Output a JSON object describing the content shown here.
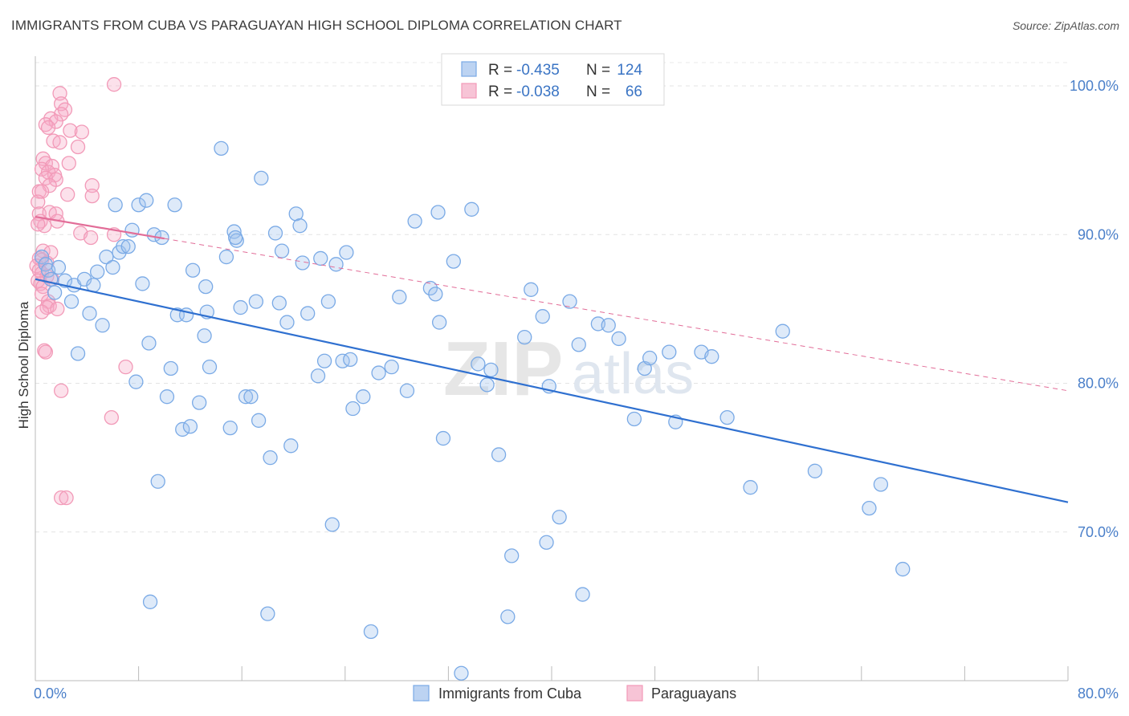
{
  "title": "IMMIGRANTS FROM CUBA VS PARAGUAYAN HIGH SCHOOL DIPLOMA CORRELATION CHART",
  "source": "Source: ZipAtlas.com",
  "watermark": {
    "part1": "ZIP",
    "part2": "atlas"
  },
  "colors": {
    "blue": "#7aaae6",
    "blue_line": "#2f70d0",
    "pink": "#f29ab8",
    "pink_line": "#e26d98"
  },
  "legend": {
    "r_label": "R =",
    "n_label": "N =",
    "rows": [
      {
        "r": "-0.435",
        "n": "124"
      },
      {
        "r": "-0.038",
        "n": "66"
      }
    ]
  },
  "chart_data": {
    "type": "scatter",
    "ylabel": "High School Diploma",
    "xlim": [
      0,
      80
    ],
    "ylim": [
      60,
      102
    ],
    "x_tick_labels": [
      "0.0%",
      "80.0%"
    ],
    "y_ticks": [
      100,
      90,
      80,
      70
    ],
    "y_tick_labels": [
      "100.0%",
      "90.0%",
      "80.0%",
      "70.0%"
    ],
    "series": [
      {
        "name": "Immigrants from Cuba",
        "trend": {
          "x0": 0,
          "y0": 87.0,
          "x1": 80,
          "y1": 72.0,
          "style": "solid"
        },
        "points": [
          [
            0.5,
            88.5
          ],
          [
            0.8,
            88.0
          ],
          [
            1.0,
            87.6
          ],
          [
            1.2,
            87.0
          ],
          [
            1.5,
            86.1
          ],
          [
            1.8,
            87.8
          ],
          [
            2.3,
            86.9
          ],
          [
            2.8,
            85.5
          ],
          [
            3.0,
            86.6
          ],
          [
            3.3,
            82.0
          ],
          [
            3.8,
            87.0
          ],
          [
            4.2,
            84.7
          ],
          [
            4.5,
            86.6
          ],
          [
            4.8,
            87.5
          ],
          [
            5.2,
            83.9
          ],
          [
            5.5,
            88.5
          ],
          [
            6.0,
            87.8
          ],
          [
            6.2,
            92.0
          ],
          [
            6.5,
            88.8
          ],
          [
            6.8,
            89.2
          ],
          [
            7.2,
            89.2
          ],
          [
            7.5,
            90.3
          ],
          [
            7.8,
            80.1
          ],
          [
            8.0,
            92.0
          ],
          [
            8.3,
            86.7
          ],
          [
            8.6,
            92.3
          ],
          [
            8.8,
            82.7
          ],
          [
            9.2,
            90.0
          ],
          [
            9.5,
            73.4
          ],
          [
            9.8,
            89.8
          ],
          [
            10.2,
            79.1
          ],
          [
            10.5,
            81.0
          ],
          [
            10.8,
            92.0
          ],
          [
            11.0,
            84.6
          ],
          [
            11.4,
            76.9
          ],
          [
            11.7,
            84.6
          ],
          [
            12.0,
            77.1
          ],
          [
            12.2,
            87.6
          ],
          [
            12.7,
            78.7
          ],
          [
            13.1,
            83.2
          ],
          [
            13.3,
            84.8
          ],
          [
            13.5,
            81.1
          ],
          [
            13.2,
            86.5
          ],
          [
            14.4,
            95.8
          ],
          [
            14.8,
            88.5
          ],
          [
            15.1,
            77.0
          ],
          [
            15.4,
            90.2
          ],
          [
            15.6,
            89.6
          ],
          [
            15.9,
            85.1
          ],
          [
            16.3,
            79.1
          ],
          [
            16.7,
            79.1
          ],
          [
            17.1,
            85.5
          ],
          [
            17.3,
            77.5
          ],
          [
            17.5,
            93.8
          ],
          [
            18.2,
            75.0
          ],
          [
            18.6,
            90.1
          ],
          [
            18.9,
            85.4
          ],
          [
            19.1,
            88.9
          ],
          [
            19.5,
            84.1
          ],
          [
            19.8,
            75.8
          ],
          [
            20.2,
            91.4
          ],
          [
            20.5,
            90.6
          ],
          [
            20.7,
            88.1
          ],
          [
            21.1,
            84.7
          ],
          [
            21.9,
            80.5
          ],
          [
            22.1,
            88.4
          ],
          [
            22.4,
            81.5
          ],
          [
            22.7,
            85.5
          ],
          [
            23.0,
            70.5
          ],
          [
            23.3,
            88.0
          ],
          [
            23.8,
            81.5
          ],
          [
            24.1,
            88.8
          ],
          [
            24.4,
            81.6
          ],
          [
            24.6,
            78.3
          ],
          [
            25.4,
            79.1
          ],
          [
            26.0,
            63.3
          ],
          [
            26.6,
            80.7
          ],
          [
            27.6,
            81.1
          ],
          [
            28.2,
            85.8
          ],
          [
            28.8,
            79.5
          ],
          [
            29.4,
            90.9
          ],
          [
            30.6,
            86.4
          ],
          [
            31.0,
            86.0
          ],
          [
            31.3,
            84.1
          ],
          [
            31.2,
            91.5
          ],
          [
            31.6,
            76.3
          ],
          [
            32.4,
            88.2
          ],
          [
            33.0,
            60.5
          ],
          [
            33.8,
            91.7
          ],
          [
            34.3,
            81.3
          ],
          [
            35.0,
            79.9
          ],
          [
            35.3,
            80.9
          ],
          [
            35.9,
            75.2
          ],
          [
            36.6,
            64.3
          ],
          [
            36.9,
            68.4
          ],
          [
            37.9,
            83.1
          ],
          [
            38.4,
            86.3
          ],
          [
            39.3,
            84.5
          ],
          [
            39.6,
            69.3
          ],
          [
            39.8,
            79.8
          ],
          [
            40.6,
            71.0
          ],
          [
            41.4,
            85.5
          ],
          [
            42.1,
            82.6
          ],
          [
            42.4,
            65.8
          ],
          [
            43.6,
            84.0
          ],
          [
            44.4,
            83.9
          ],
          [
            45.2,
            83.0
          ],
          [
            46.4,
            77.6
          ],
          [
            47.2,
            81.0
          ],
          [
            47.6,
            81.7
          ],
          [
            49.1,
            82.1
          ],
          [
            49.6,
            77.4
          ],
          [
            51.6,
            82.1
          ],
          [
            52.4,
            81.8
          ],
          [
            53.6,
            77.7
          ],
          [
            55.4,
            73.0
          ],
          [
            57.9,
            83.5
          ],
          [
            60.4,
            74.1
          ],
          [
            64.6,
            71.6
          ],
          [
            65.5,
            73.2
          ],
          [
            67.2,
            67.5
          ],
          [
            8.9,
            65.3
          ],
          [
            18.0,
            64.5
          ],
          [
            15.5,
            89.8
          ]
        ]
      },
      {
        "name": "Paraguayans",
        "trend": {
          "x0": 0,
          "y0": 91.2,
          "x1": 80,
          "y1": 79.5,
          "style": "dashed"
        },
        "points": [
          [
            6.1,
            100.1
          ],
          [
            1.9,
            99.5
          ],
          [
            2.0,
            98.8
          ],
          [
            2.3,
            98.4
          ],
          [
            2.0,
            98.1
          ],
          [
            1.2,
            97.8
          ],
          [
            1.6,
            97.6
          ],
          [
            0.8,
            97.4
          ],
          [
            1.0,
            97.2
          ],
          [
            2.7,
            97.0
          ],
          [
            3.6,
            96.9
          ],
          [
            1.4,
            96.3
          ],
          [
            1.9,
            96.2
          ],
          [
            3.3,
            95.9
          ],
          [
            0.6,
            95.1
          ],
          [
            0.8,
            94.8
          ],
          [
            1.3,
            94.6
          ],
          [
            2.6,
            94.8
          ],
          [
            0.5,
            94.4
          ],
          [
            1.0,
            94.2
          ],
          [
            1.5,
            94.0
          ],
          [
            0.8,
            93.8
          ],
          [
            1.6,
            93.7
          ],
          [
            1.1,
            93.3
          ],
          [
            4.4,
            93.3
          ],
          [
            0.3,
            92.9
          ],
          [
            0.5,
            92.9
          ],
          [
            2.5,
            92.7
          ],
          [
            4.4,
            92.6
          ],
          [
            0.2,
            92.2
          ],
          [
            0.3,
            91.4
          ],
          [
            1.1,
            91.5
          ],
          [
            1.6,
            91.4
          ],
          [
            0.4,
            90.9
          ],
          [
            0.7,
            90.6
          ],
          [
            0.2,
            90.7
          ],
          [
            1.7,
            90.9
          ],
          [
            3.5,
            90.1
          ],
          [
            4.3,
            89.8
          ],
          [
            6.1,
            90.0
          ],
          [
            0.6,
            88.9
          ],
          [
            1.2,
            88.8
          ],
          [
            0.3,
            88.4
          ],
          [
            0.5,
            88.3
          ],
          [
            0.9,
            88.1
          ],
          [
            0.1,
            87.9
          ],
          [
            0.3,
            87.6
          ],
          [
            0.5,
            87.4
          ],
          [
            0.9,
            87.2
          ],
          [
            1.3,
            87.0
          ],
          [
            0.2,
            86.9
          ],
          [
            0.4,
            86.7
          ],
          [
            0.6,
            86.5
          ],
          [
            0.5,
            86.0
          ],
          [
            1.0,
            85.5
          ],
          [
            1.1,
            85.2
          ],
          [
            0.9,
            85.1
          ],
          [
            0.5,
            84.8
          ],
          [
            1.7,
            85.0
          ],
          [
            0.7,
            82.2
          ],
          [
            0.8,
            82.1
          ],
          [
            7.0,
            81.1
          ],
          [
            2.0,
            79.5
          ],
          [
            5.9,
            77.7
          ],
          [
            2.0,
            72.3
          ],
          [
            2.4,
            72.3
          ]
        ]
      }
    ]
  }
}
